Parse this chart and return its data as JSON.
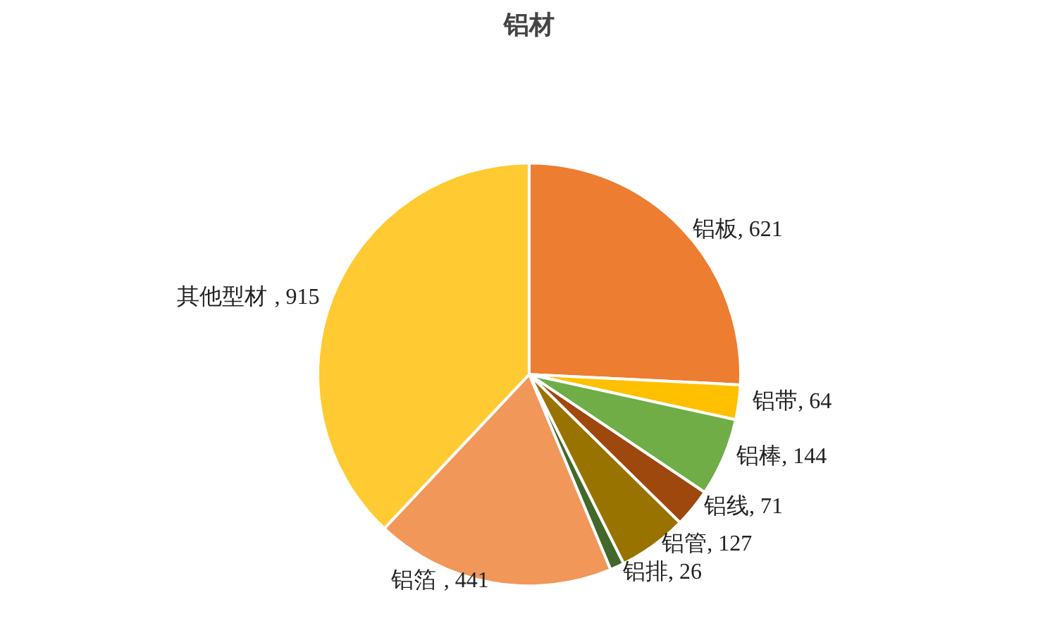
{
  "chart_data": {
    "type": "pie",
    "title": "铝材",
    "categories": [
      "铝板",
      "铝带",
      "铝棒",
      "铝线",
      "铝管",
      "铝排",
      "铝箔",
      "其他型材"
    ],
    "values": [
      621,
      64,
      144,
      71,
      127,
      26,
      441,
      915
    ],
    "value_labels": [
      ", 621",
      ", 64",
      ", 144",
      ", 71",
      ", 127",
      ", 26",
      ", 441",
      ", 915"
    ],
    "colors": [
      "#ed7d31",
      "#ffc000",
      "#70ad47",
      "#9e480e",
      "#997300",
      "#43682b",
      "#f1975a",
      "#ffca32"
    ]
  }
}
